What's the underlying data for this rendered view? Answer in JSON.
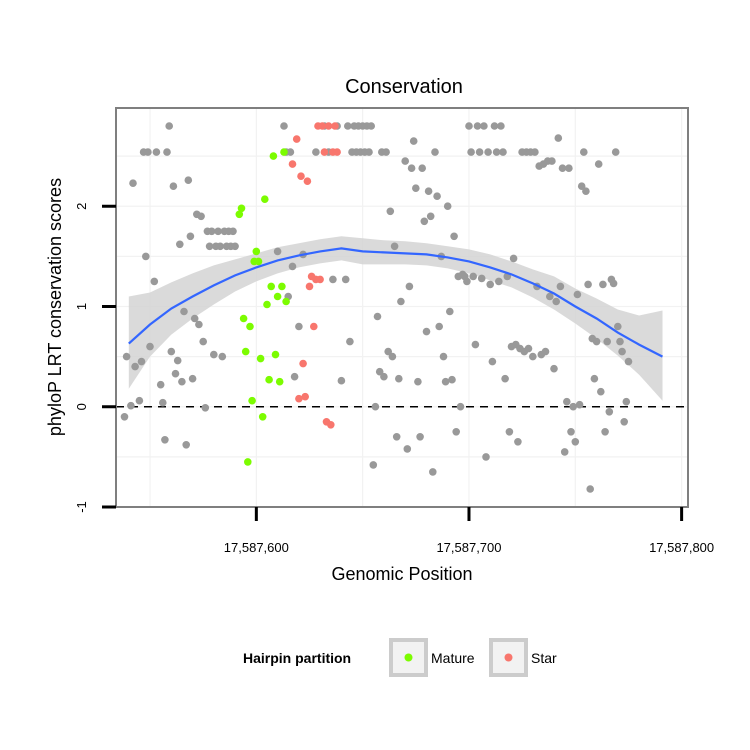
{
  "chart_data": {
    "type": "scatter",
    "title": "Conservation",
    "xlabel": "Genomic Position",
    "ylabel": "phyloP LRT conservation scores",
    "xlim": [
      17587534,
      17587803
    ],
    "ylim": [
      -1,
      2.98
    ],
    "x_ticks": [
      17587600,
      17587700,
      17587800
    ],
    "x_tick_labels": [
      "17,587,600",
      "17,587,700",
      "17,587,800"
    ],
    "y_ticks": [
      -1,
      0,
      1,
      2
    ],
    "y_tick_labels": [
      "-1",
      "0",
      "1",
      "2"
    ],
    "reference_line": {
      "y": 0,
      "style": "dashed"
    },
    "grid": true,
    "legend": {
      "title": "Hairpin partition",
      "position": "bottom",
      "entries": [
        {
          "label": "Mature",
          "color": "#7cfc00"
        },
        {
          "label": "Star",
          "color": "#f8766d"
        }
      ]
    },
    "colors": {
      "background": "#000000",
      "other": "#999999",
      "Mature": "#7cfc00",
      "Star": "#f8766d",
      "smooth": "#3366ff",
      "band": "#d3d3d3"
    },
    "series": [
      {
        "name": "",
        "color": "#999999",
        "points": [
          [
            17587538,
            -0.1
          ],
          [
            17587539,
            0.5
          ],
          [
            17587541,
            0.01
          ],
          [
            17587542,
            2.23
          ],
          [
            17587543,
            0.4
          ],
          [
            17587545,
            0.06
          ],
          [
            17587546,
            0.45
          ],
          [
            17587547,
            2.54
          ],
          [
            17587548,
            1.5
          ],
          [
            17587549,
            2.54
          ],
          [
            17587550,
            0.6
          ],
          [
            17587552,
            1.25
          ],
          [
            17587553,
            2.54
          ],
          [
            17587555,
            0.22
          ],
          [
            17587556,
            0.04
          ],
          [
            17587557,
            -0.33
          ],
          [
            17587558,
            2.54
          ],
          [
            17587559,
            2.8
          ],
          [
            17587560,
            0.55
          ],
          [
            17587561,
            2.2
          ],
          [
            17587562,
            0.33
          ],
          [
            17587563,
            0.46
          ],
          [
            17587564,
            1.62
          ],
          [
            17587565,
            0.25
          ],
          [
            17587566,
            0.95
          ],
          [
            17587567,
            -0.38
          ],
          [
            17587568,
            2.26
          ],
          [
            17587569,
            1.7
          ],
          [
            17587570,
            0.28
          ],
          [
            17587571,
            0.88
          ],
          [
            17587572,
            1.92
          ],
          [
            17587573,
            0.82
          ],
          [
            17587574,
            1.9
          ],
          [
            17587575,
            0.65
          ],
          [
            17587576,
            -0.01
          ],
          [
            17587577,
            1.75
          ],
          [
            17587578,
            1.6
          ],
          [
            17587579,
            1.75
          ],
          [
            17587580,
            0.52
          ],
          [
            17587581,
            1.6
          ],
          [
            17587582,
            1.75
          ],
          [
            17587583,
            1.6
          ],
          [
            17587584,
            0.5
          ],
          [
            17587585,
            1.75
          ],
          [
            17587586,
            1.6
          ],
          [
            17587587,
            1.75
          ],
          [
            17587588,
            1.6
          ],
          [
            17587589,
            1.75
          ],
          [
            17587590,
            1.6
          ],
          [
            17587610,
            1.55
          ],
          [
            17587613,
            2.8
          ],
          [
            17587614,
            2.54
          ],
          [
            17587615,
            1.1
          ],
          [
            17587616,
            2.54
          ],
          [
            17587617,
            1.4
          ],
          [
            17587618,
            0.3
          ],
          [
            17587620,
            0.8
          ],
          [
            17587622,
            1.52
          ],
          [
            17587628,
            2.54
          ],
          [
            17587632,
            2.8
          ],
          [
            17587634,
            2.54
          ],
          [
            17587636,
            1.27
          ],
          [
            17587638,
            2.8
          ],
          [
            17587640,
            0.26
          ],
          [
            17587642,
            1.27
          ],
          [
            17587643,
            2.8
          ],
          [
            17587644,
            0.65
          ],
          [
            17587645,
            2.54
          ],
          [
            17587646,
            2.8
          ],
          [
            17587647,
            2.54
          ],
          [
            17587648,
            2.8
          ],
          [
            17587649,
            2.54
          ],
          [
            17587650,
            2.8
          ],
          [
            17587651,
            2.54
          ],
          [
            17587652,
            2.8
          ],
          [
            17587653,
            2.54
          ],
          [
            17587654,
            2.8
          ],
          [
            17587655,
            -0.58
          ],
          [
            17587656,
            0.0
          ],
          [
            17587657,
            0.9
          ],
          [
            17587658,
            0.35
          ],
          [
            17587659,
            2.54
          ],
          [
            17587660,
            0.3
          ],
          [
            17587661,
            2.54
          ],
          [
            17587662,
            0.55
          ],
          [
            17587663,
            1.95
          ],
          [
            17587664,
            0.5
          ],
          [
            17587665,
            1.6
          ],
          [
            17587666,
            -0.3
          ],
          [
            17587667,
            0.28
          ],
          [
            17587668,
            1.05
          ],
          [
            17587670,
            2.45
          ],
          [
            17587671,
            -0.42
          ],
          [
            17587672,
            1.2
          ],
          [
            17587673,
            2.38
          ],
          [
            17587674,
            2.65
          ],
          [
            17587675,
            2.18
          ],
          [
            17587676,
            0.25
          ],
          [
            17587677,
            -0.3
          ],
          [
            17587678,
            2.38
          ],
          [
            17587679,
            1.85
          ],
          [
            17587680,
            0.75
          ],
          [
            17587681,
            2.15
          ],
          [
            17587682,
            1.9
          ],
          [
            17587683,
            -0.65
          ],
          [
            17587684,
            2.54
          ],
          [
            17587685,
            2.1
          ],
          [
            17587686,
            0.8
          ],
          [
            17587687,
            1.5
          ],
          [
            17587688,
            0.5
          ],
          [
            17587689,
            0.25
          ],
          [
            17587690,
            2.0
          ],
          [
            17587691,
            0.95
          ],
          [
            17587692,
            0.27
          ],
          [
            17587693,
            1.7
          ],
          [
            17587694,
            -0.25
          ],
          [
            17587695,
            1.3
          ],
          [
            17587696,
            0.0
          ],
          [
            17587697,
            1.32
          ],
          [
            17587698,
            1.3
          ],
          [
            17587699,
            1.25
          ],
          [
            17587700,
            2.8
          ],
          [
            17587701,
            2.54
          ],
          [
            17587702,
            1.3
          ],
          [
            17587703,
            0.62
          ],
          [
            17587704,
            2.8
          ],
          [
            17587705,
            2.54
          ],
          [
            17587706,
            1.28
          ],
          [
            17587707,
            2.8
          ],
          [
            17587708,
            -0.5
          ],
          [
            17587709,
            2.54
          ],
          [
            17587710,
            1.22
          ],
          [
            17587711,
            0.45
          ],
          [
            17587712,
            2.8
          ],
          [
            17587713,
            2.54
          ],
          [
            17587714,
            1.25
          ],
          [
            17587715,
            2.8
          ],
          [
            17587716,
            2.54
          ],
          [
            17587717,
            0.28
          ],
          [
            17587718,
            1.3
          ],
          [
            17587719,
            -0.25
          ],
          [
            17587720,
            0.6
          ],
          [
            17587721,
            1.48
          ],
          [
            17587722,
            0.62
          ],
          [
            17587723,
            -0.35
          ],
          [
            17587724,
            0.58
          ],
          [
            17587725,
            2.54
          ],
          [
            17587726,
            0.55
          ],
          [
            17587727,
            2.54
          ],
          [
            17587728,
            0.58
          ],
          [
            17587729,
            2.54
          ],
          [
            17587730,
            0.5
          ],
          [
            17587731,
            2.54
          ],
          [
            17587732,
            1.2
          ],
          [
            17587733,
            2.4
          ],
          [
            17587734,
            0.52
          ],
          [
            17587735,
            2.42
          ],
          [
            17587736,
            0.55
          ],
          [
            17587737,
            2.45
          ],
          [
            17587738,
            1.1
          ],
          [
            17587739,
            2.45
          ],
          [
            17587740,
            0.38
          ],
          [
            17587741,
            1.05
          ],
          [
            17587742,
            2.68
          ],
          [
            17587743,
            1.2
          ],
          [
            17587744,
            2.38
          ],
          [
            17587745,
            -0.45
          ],
          [
            17587746,
            0.05
          ],
          [
            17587747,
            2.38
          ],
          [
            17587748,
            -0.25
          ],
          [
            17587749,
            0.0
          ],
          [
            17587750,
            -0.35
          ],
          [
            17587751,
            1.12
          ],
          [
            17587752,
            0.02
          ],
          [
            17587753,
            2.2
          ],
          [
            17587754,
            2.54
          ],
          [
            17587755,
            2.15
          ],
          [
            17587756,
            1.22
          ],
          [
            17587757,
            -0.82
          ],
          [
            17587758,
            0.68
          ],
          [
            17587759,
            0.28
          ],
          [
            17587760,
            0.65
          ],
          [
            17587761,
            2.42
          ],
          [
            17587762,
            0.15
          ],
          [
            17587763,
            1.22
          ],
          [
            17587764,
            -0.25
          ],
          [
            17587765,
            0.65
          ],
          [
            17587766,
            -0.05
          ],
          [
            17587767,
            1.27
          ],
          [
            17587768,
            1.23
          ],
          [
            17587769,
            2.54
          ],
          [
            17587770,
            0.8
          ],
          [
            17587771,
            0.65
          ],
          [
            17587772,
            0.55
          ],
          [
            17587773,
            -0.15
          ],
          [
            17587774,
            0.05
          ],
          [
            17587775,
            0.45
          ]
        ]
      },
      {
        "name": "Mature",
        "color": "#7cfc00",
        "points": [
          [
            17587592,
            1.92
          ],
          [
            17587593,
            1.98
          ],
          [
            17587594,
            0.88
          ],
          [
            17587595,
            0.55
          ],
          [
            17587596,
            -0.55
          ],
          [
            17587597,
            0.8
          ],
          [
            17587598,
            0.06
          ],
          [
            17587599,
            1.45
          ],
          [
            17587600,
            1.55
          ],
          [
            17587601,
            1.45
          ],
          [
            17587602,
            0.48
          ],
          [
            17587603,
            -0.1
          ],
          [
            17587604,
            2.07
          ],
          [
            17587605,
            1.02
          ],
          [
            17587606,
            0.27
          ],
          [
            17587607,
            1.2
          ],
          [
            17587608,
            2.5
          ],
          [
            17587609,
            0.52
          ],
          [
            17587610,
            1.1
          ],
          [
            17587611,
            0.25
          ],
          [
            17587612,
            1.2
          ],
          [
            17587613,
            2.54
          ],
          [
            17587614,
            1.05
          ]
        ]
      },
      {
        "name": "Star",
        "color": "#f8766d",
        "points": [
          [
            17587617,
            2.42
          ],
          [
            17587619,
            2.67
          ],
          [
            17587620,
            0.08
          ],
          [
            17587621,
            2.3
          ],
          [
            17587622,
            0.43
          ],
          [
            17587623,
            0.1
          ],
          [
            17587624,
            2.25
          ],
          [
            17587625,
            1.2
          ],
          [
            17587626,
            1.3
          ],
          [
            17587627,
            0.8
          ],
          [
            17587628,
            1.27
          ],
          [
            17587629,
            2.8
          ],
          [
            17587630,
            1.27
          ],
          [
            17587631,
            2.8
          ],
          [
            17587632,
            2.54
          ],
          [
            17587633,
            -0.15
          ],
          [
            17587634,
            2.8
          ],
          [
            17587635,
            -0.18
          ],
          [
            17587636,
            2.54
          ],
          [
            17587637,
            2.8
          ],
          [
            17587638,
            2.54
          ]
        ]
      }
    ],
    "smooth": {
      "x": [
        17587540,
        17587550,
        17587560,
        17587570,
        17587580,
        17587590,
        17587600,
        17587610,
        17587620,
        17587630,
        17587640,
        17587650,
        17587660,
        17587670,
        17587680,
        17587690,
        17587700,
        17587710,
        17587720,
        17587730,
        17587740,
        17587750,
        17587760,
        17587770,
        17587780,
        17587791
      ],
      "y": [
        0.63,
        0.82,
        0.98,
        1.1,
        1.21,
        1.31,
        1.39,
        1.46,
        1.51,
        1.55,
        1.58,
        1.55,
        1.54,
        1.53,
        1.52,
        1.49,
        1.45,
        1.39,
        1.32,
        1.23,
        1.13,
        1.0,
        0.88,
        0.74,
        0.62,
        0.5
      ],
      "lower": [
        0.18,
        0.5,
        0.72,
        0.88,
        1.02,
        1.15,
        1.25,
        1.33,
        1.39,
        1.43,
        1.46,
        1.42,
        1.42,
        1.42,
        1.41,
        1.38,
        1.33,
        1.26,
        1.19,
        1.09,
        0.97,
        0.83,
        0.68,
        0.51,
        0.32,
        0.06
      ],
      "upper": [
        1.1,
        1.14,
        1.24,
        1.33,
        1.41,
        1.47,
        1.53,
        1.59,
        1.63,
        1.67,
        1.7,
        1.68,
        1.66,
        1.65,
        1.63,
        1.6,
        1.57,
        1.52,
        1.45,
        1.37,
        1.3,
        1.18,
        1.08,
        0.97,
        0.91,
        0.96
      ]
    }
  }
}
